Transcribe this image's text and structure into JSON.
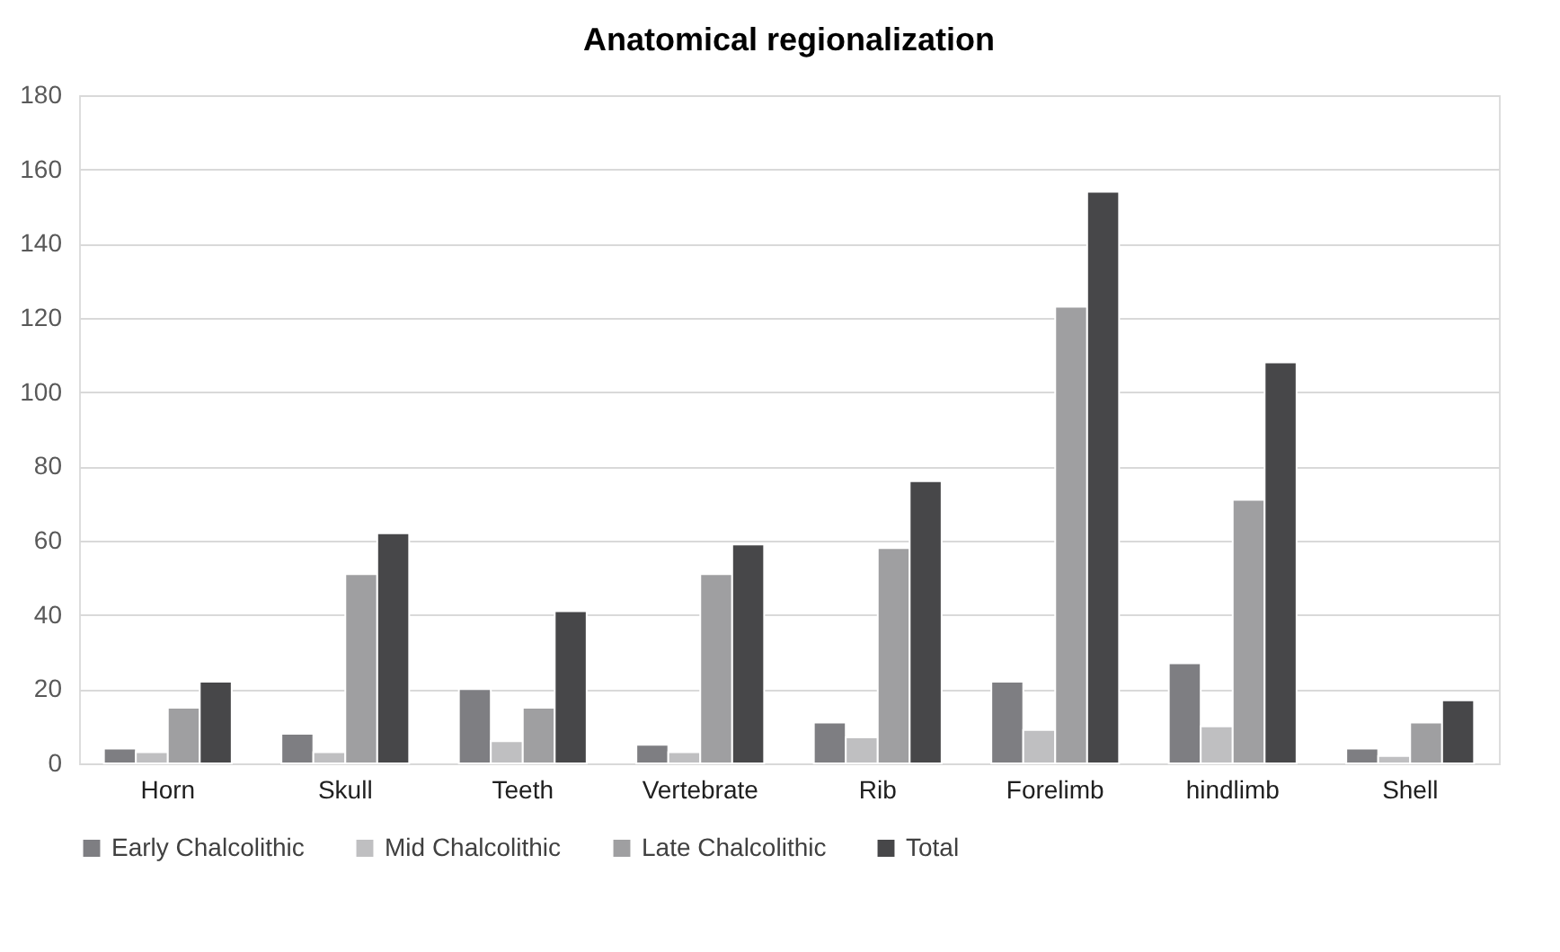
{
  "chart_data": {
    "type": "bar",
    "title": "Anatomical regionalization",
    "categories": [
      "Horn",
      "Skull",
      "Teeth",
      "Vertebrate",
      "Rib",
      "Forelimb",
      "hindlimb",
      "Shell"
    ],
    "series": [
      {
        "name": "Early Chalcolithic",
        "color": "#7e7e82",
        "values": [
          4,
          8,
          20,
          5,
          11,
          22,
          27,
          4
        ]
      },
      {
        "name": "Mid Chalcolithic",
        "color": "#bfbfc1",
        "values": [
          3,
          3,
          6,
          3,
          7,
          9,
          10,
          2
        ]
      },
      {
        "name": "Late Chalcolithic",
        "color": "#9f9fa1",
        "values": [
          15,
          51,
          15,
          51,
          58,
          123,
          71,
          11
        ]
      },
      {
        "name": "Total",
        "color": "#474749",
        "values": [
          22,
          62,
          41,
          59,
          76,
          154,
          108,
          17
        ]
      }
    ],
    "ylim": [
      0,
      180
    ],
    "yticks": [
      0,
      20,
      40,
      60,
      80,
      100,
      120,
      140,
      160,
      180
    ],
    "grid": "y",
    "legend": "bottom"
  }
}
